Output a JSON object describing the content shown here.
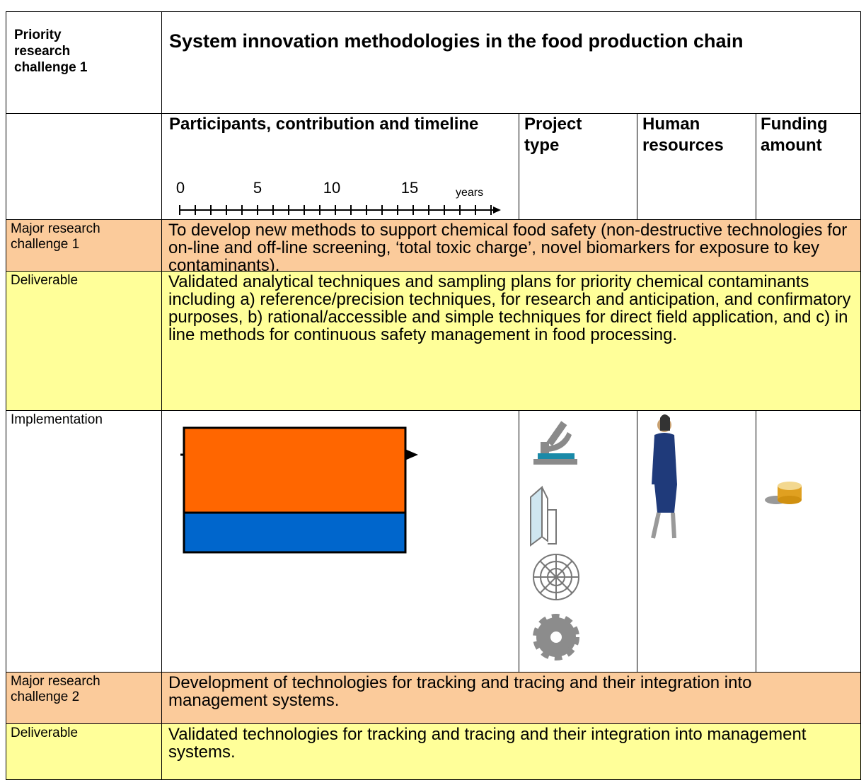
{
  "header": {
    "label": "Priority research challenge 1",
    "title": "System innovation methodologies in the food production chain"
  },
  "columns": {
    "participants": "Participants, contribution and timeline",
    "project_type": "Project type",
    "human_resources": "Human resources",
    "funding": "Funding amount"
  },
  "timeline": {
    "ticks": [
      0,
      5,
      10,
      15
    ],
    "unit": "years"
  },
  "rows": [
    {
      "label": "Major research challenge 1",
      "text": "To develop new methods to support chemical food safety (non-destructive technologies for on-line and off-line screening, ‘total toxic charge’, novel biomarkers for exposure to key contaminants)."
    },
    {
      "label": "Deliverable",
      "text": "Validated analytical techniques and sampling plans for priority chemical contaminants including a) reference/precision techniques, for research and anticipation, and confirmatory purposes, b) rational/accessible and simple techniques for direct field application, and c) in line methods for continuous safety management in food processing."
    },
    {
      "label": "Implementation"
    },
    {
      "label": "Major research challenge 2",
      "text": "Development of technologies for tracking and tracing and their integration into management systems."
    },
    {
      "label": "Deliverable",
      "text": "Validated technologies for tracking and tracing and their integration into management systems."
    }
  ]
}
